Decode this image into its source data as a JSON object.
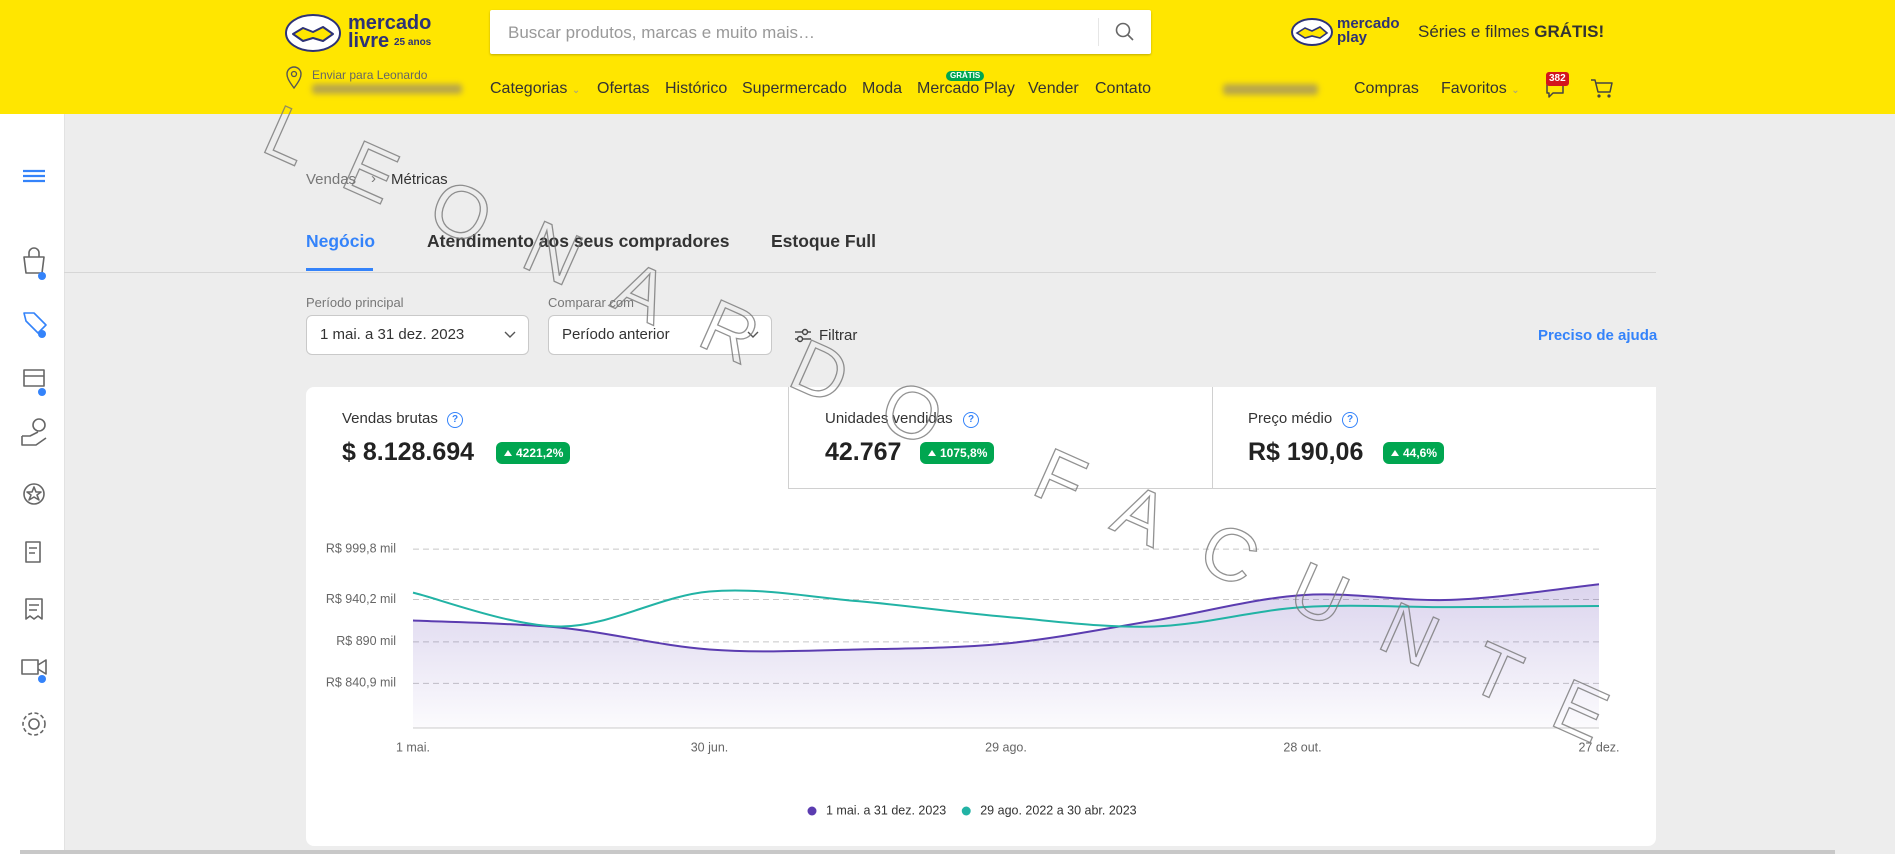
{
  "header": {
    "logo_line1": "mercado",
    "logo_line2": "livre",
    "logo_badge": "25 anos",
    "search_placeholder": "Buscar produtos, marcas e muito mais…",
    "play_logo_line1": "mercado",
    "play_logo_line2": "play",
    "promo_text": "Séries e filmes",
    "promo_emphasis": "GRÁTIS!",
    "delivery_label": "Enviar para Leonardo",
    "nav": [
      "Categorias",
      "Ofertas",
      "Histórico",
      "Supermercado",
      "Moda",
      "Mercado Play",
      "Vender",
      "Contato"
    ],
    "nav_badge": "GRÁTIS",
    "account_links": [
      "Compras",
      "Favoritos"
    ],
    "notification_count": "382"
  },
  "breadcrumb": [
    "Vendas",
    "Métricas"
  ],
  "tabs": [
    "Negócio",
    "Atendimento aos seus compradores",
    "Estoque Full"
  ],
  "filters": {
    "main_period_label": "Período principal",
    "main_period_value": "1 mai. a 31 dez. 2023",
    "compare_label": "Comparar com",
    "compare_value": "Período anterior",
    "filter_button": "Filtrar",
    "help_link": "Preciso de ajuda"
  },
  "metrics": [
    {
      "label": "Vendas brutas",
      "value": "$ 8.128.694",
      "change": "4221,2%"
    },
    {
      "label": "Unidades vendidas",
      "value": "42.767",
      "change": "1075,8%"
    },
    {
      "label": "Preço médio",
      "value": "R$ 190,06",
      "change": "44,6%"
    }
  ],
  "chart_data": {
    "type": "line",
    "categories": [
      "1 mai.",
      null,
      "30 jun.",
      null,
      "29 ago.",
      null,
      "28 out.",
      null,
      "27 dez."
    ],
    "series": [
      {
        "name": "1 mai. a 31 dez. 2023",
        "color": "#5b3cb0",
        "values": [
          915.3,
          906.7,
          881.0,
          881.0,
          888.1,
          915.3,
          945.4,
          939.7,
          958.3
        ]
      },
      {
        "name": "29 ago. 2022 a 30 abr. 2023",
        "color": "#22b3a5",
        "values": [
          948.3,
          908.2,
          949.7,
          938.2,
          919.6,
          908.2,
          931.1,
          931.1,
          932.5
        ]
      }
    ],
    "ylim": [
      788,
      1000
    ],
    "yticks": [
      {
        "value": 840.9,
        "label": "R$ 840,9 mil"
      },
      {
        "value": 890,
        "label": "R$ 890 mil"
      },
      {
        "value": 940.2,
        "label": "R$ 940,2 mil"
      },
      {
        "value": 999.8,
        "label": "R$ 999,8 mil"
      }
    ],
    "grid": true
  },
  "watermark": "LEONARDO FACUNTE"
}
